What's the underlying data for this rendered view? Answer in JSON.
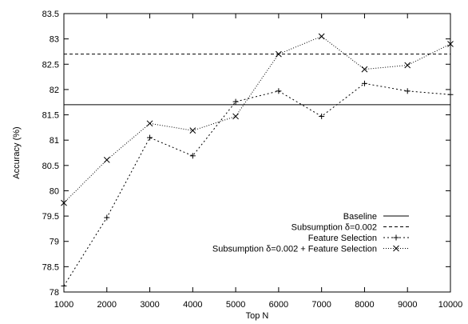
{
  "chart_data": {
    "type": "line",
    "xlabel": "Top N",
    "ylabel": "Accuracy (%)",
    "xlim": [
      1000,
      10000
    ],
    "ylim": [
      78,
      83.5
    ],
    "xticks": [
      1000,
      2000,
      3000,
      4000,
      5000,
      6000,
      7000,
      8000,
      9000,
      10000
    ],
    "yticks": [
      78,
      78.5,
      79,
      79.5,
      80,
      80.5,
      81,
      81.5,
      82,
      82.5,
      83,
      83.5
    ],
    "grid": false,
    "legend_position": "bottom-right",
    "series": [
      {
        "name": "Baseline",
        "style": "solid",
        "marker": "none",
        "x": [
          1000,
          10000
        ],
        "values": [
          81.7,
          81.7
        ]
      },
      {
        "name": "Subsumption δ=0.002",
        "style": "dashed",
        "marker": "none",
        "x": [
          1000,
          10000
        ],
        "values": [
          82.7,
          82.7
        ]
      },
      {
        "name": "Feature Selection",
        "style": "dotted",
        "marker": "plus",
        "x": [
          1000,
          2000,
          3000,
          4000,
          5000,
          6000,
          7000,
          8000,
          9000,
          10000
        ],
        "values": [
          78.12,
          79.47,
          81.05,
          80.69,
          81.76,
          81.97,
          81.47,
          82.12,
          81.97,
          81.9
        ]
      },
      {
        "name": "Subsumption δ=0.002 + Feature Selection",
        "style": "densedot",
        "marker": "cross",
        "x": [
          1000,
          2000,
          3000,
          4000,
          5000,
          6000,
          7000,
          8000,
          9000,
          10000
        ],
        "values": [
          79.76,
          80.61,
          81.33,
          81.19,
          81.47,
          82.7,
          83.05,
          82.4,
          82.48,
          82.9
        ]
      }
    ]
  }
}
